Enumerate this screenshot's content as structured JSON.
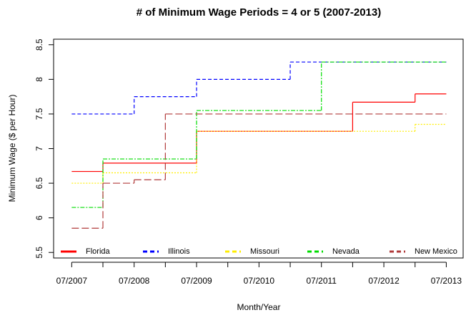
{
  "chart_data": {
    "type": "step",
    "title": "# of Minimum Wage Periods = 4 or 5 (2007-2013)",
    "x_label": "Month/Year",
    "y_label": "Minimum Wage ($ per Hour)",
    "xlim": [
      2007.21,
      2013.77
    ],
    "ylim": [
      5.42,
      8.58
    ],
    "xticks": [
      {
        "value": 2007.5,
        "label": "07/2007"
      },
      {
        "value": 2008.5,
        "label": "07/2008"
      },
      {
        "value": 2009.5,
        "label": "07/2009"
      },
      {
        "value": 2010.5,
        "label": "07/2010"
      },
      {
        "value": 2011.5,
        "label": "07/2011"
      },
      {
        "value": 2012.5,
        "label": "07/2012"
      },
      {
        "value": 2013.5,
        "label": "07/2013"
      }
    ],
    "xminorticks": [
      2008,
      2009,
      2010,
      2011,
      2012,
      2013
    ],
    "yticks": [
      5.5,
      6.0,
      6.5,
      7.0,
      7.5,
      8.0,
      8.5
    ],
    "legend": "bottom",
    "series": [
      {
        "name": "Florida",
        "color": "#ff0000",
        "dash": "none",
        "edges": [
          2007.5,
          2008,
          2009.5,
          2012,
          2013,
          2013.5
        ],
        "values": [
          6.67,
          6.79,
          7.25,
          7.67,
          7.79
        ]
      },
      {
        "name": "Illinois",
        "color": "#0000ff",
        "dash": "5 3",
        "edges": [
          2007.5,
          2008.5,
          2009.5,
          2011,
          2013.5
        ],
        "values": [
          7.5,
          7.75,
          8.0,
          8.25
        ]
      },
      {
        "name": "Missouri",
        "color": "#ffee00",
        "dash": "2 2",
        "edges": [
          2007.5,
          2008,
          2009.5,
          2013,
          2013.5
        ],
        "values": [
          6.5,
          6.65,
          7.25,
          7.35
        ]
      },
      {
        "name": "Nevada",
        "color": "#00dd00",
        "dash": "6 2 2 2",
        "edges": [
          2007.5,
          2008,
          2009.5,
          2011.5,
          2013.5
        ],
        "values": [
          6.15,
          6.85,
          7.55,
          8.25
        ]
      },
      {
        "name": "New Mexico",
        "color": "#b03a3a",
        "dash": "10 4",
        "edges": [
          2007.5,
          2008,
          2008.5,
          2009,
          2013.5
        ],
        "values": [
          5.85,
          6.5,
          6.55,
          7.5
        ]
      }
    ]
  }
}
